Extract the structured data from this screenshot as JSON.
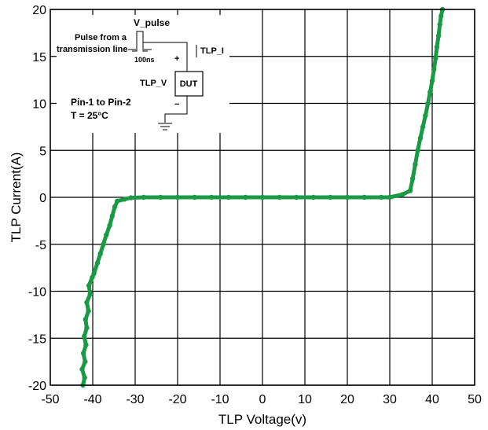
{
  "chart_data": {
    "type": "scatter",
    "title": "",
    "xlabel": "TLP Voltage(v)",
    "ylabel": "TLP Current(A)",
    "xlim": [
      -50,
      50
    ],
    "ylim": [
      -20,
      20
    ],
    "x_ticks": [
      -50,
      -40,
      -30,
      -20,
      -10,
      0,
      10,
      20,
      30,
      40,
      50
    ],
    "y_ticks": [
      -20,
      -15,
      -10,
      -5,
      0,
      5,
      10,
      15,
      20
    ],
    "grid": true,
    "marker_color": "#1a9a44",
    "series": [
      {
        "name": "",
        "points": [
          [
            -42.3,
            -20
          ],
          [
            -41.9,
            -19.2
          ],
          [
            -42.5,
            -18.3
          ],
          [
            -41.8,
            -17.5
          ],
          [
            -42.2,
            -16.6
          ],
          [
            -41.6,
            -15.7
          ],
          [
            -42.0,
            -14.8
          ],
          [
            -41.4,
            -13.9
          ],
          [
            -41.7,
            -13.0
          ],
          [
            -41.0,
            -12.1
          ],
          [
            -41.4,
            -11.2
          ],
          [
            -40.6,
            -10.3
          ],
          [
            -40.9,
            -9.4
          ],
          [
            -40.1,
            -8.5
          ],
          [
            -39.7,
            -8.1
          ],
          [
            -38.9,
            -7.0
          ],
          [
            -38.2,
            -6.0
          ],
          [
            -37.5,
            -5.0
          ],
          [
            -36.8,
            -4.0
          ],
          [
            -36.0,
            -3.0
          ],
          [
            -35.4,
            -2.0
          ],
          [
            -34.8,
            -1.0
          ],
          [
            -34.2,
            -0.4
          ],
          [
            -32.5,
            -0.2
          ],
          [
            -31.0,
            -0.05
          ],
          [
            -28,
            0
          ],
          [
            -24,
            0
          ],
          [
            -20,
            0
          ],
          [
            -16,
            0
          ],
          [
            -12,
            0
          ],
          [
            -8,
            0
          ],
          [
            -4,
            0
          ],
          [
            0,
            0
          ],
          [
            4,
            0
          ],
          [
            8,
            0
          ],
          [
            12,
            0
          ],
          [
            16,
            0
          ],
          [
            20,
            0
          ],
          [
            24,
            0
          ],
          [
            28,
            0
          ],
          [
            30.0,
            0
          ],
          [
            33.0,
            0.3
          ],
          [
            34.8,
            0.7
          ],
          [
            35.4,
            2.0
          ],
          [
            36.0,
            3.5
          ],
          [
            36.6,
            5.0
          ],
          [
            37.2,
            6.3
          ],
          [
            37.8,
            7.5
          ],
          [
            38.4,
            8.7
          ],
          [
            39.0,
            10.0
          ],
          [
            39.5,
            11.2
          ],
          [
            40.0,
            12.4
          ],
          [
            40.4,
            13.6
          ],
          [
            40.8,
            14.8
          ],
          [
            41.1,
            16.0
          ],
          [
            41.5,
            17.2
          ],
          [
            41.8,
            18.4
          ],
          [
            42.1,
            19.3
          ],
          [
            42.4,
            20
          ]
        ]
      }
    ],
    "inset": {
      "pulse_label": "V_pulse",
      "pulse_desc_line1": "Pulse from a",
      "pulse_desc_line2": "transmission line",
      "pulse_width": "100ns",
      "current_label": "TLP_I",
      "voltage_label": "TLP_V",
      "device_label": "DUT",
      "plus_sign": "+",
      "minus_sign": "−",
      "condition_line1": "Pin-1 to Pin-2",
      "condition_line2": "T = 25°C"
    }
  }
}
